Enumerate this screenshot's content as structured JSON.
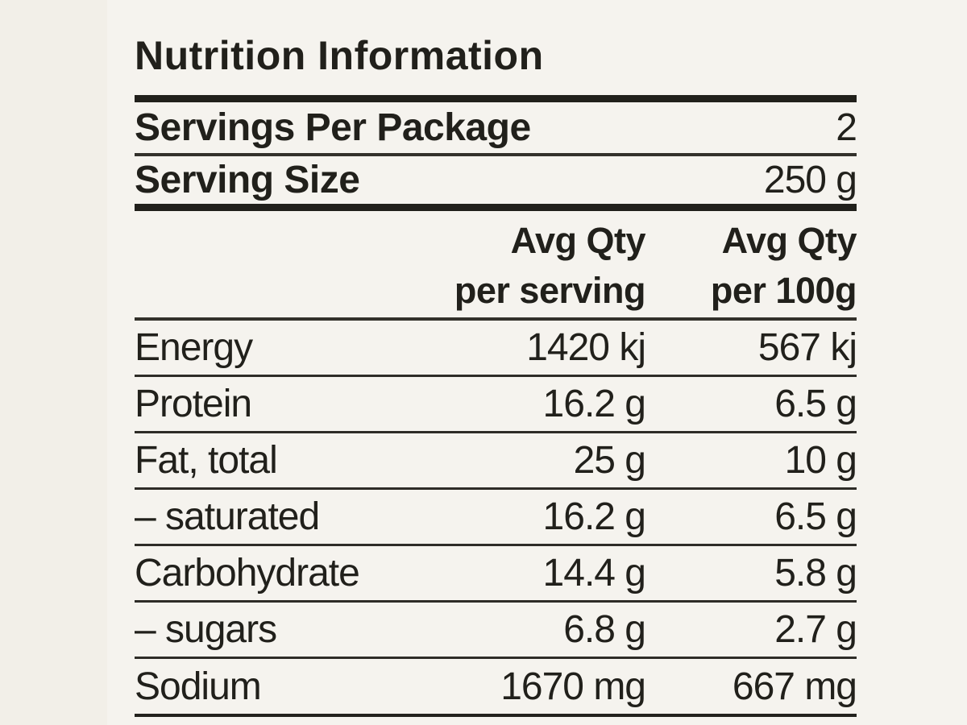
{
  "label": {
    "title": "Nutrition Information",
    "info_rows": [
      {
        "name": "Servings Per Package",
        "value": "2"
      },
      {
        "name": "Serving Size",
        "value": "250 g"
      }
    ],
    "columns": [
      {
        "line1": "Avg Qty",
        "line2": "per serving"
      },
      {
        "line1": "Avg Qty",
        "line2": "per 100g"
      }
    ],
    "rows": [
      {
        "nutrient": "Energy",
        "per_serving": "1420 kj",
        "per_100g": "567 kj"
      },
      {
        "nutrient": "Protein",
        "per_serving": "16.2 g",
        "per_100g": "6.5 g"
      },
      {
        "nutrient": "Fat, total",
        "per_serving": "25 g",
        "per_100g": "10 g"
      },
      {
        "nutrient": "– saturated",
        "per_serving": "16.2 g",
        "per_100g": "6.5 g"
      },
      {
        "nutrient": "Carbohydrate",
        "per_serving": "14.4 g",
        "per_100g": "5.8 g"
      },
      {
        "nutrient": "– sugars",
        "per_serving": "6.8 g",
        "per_100g": "2.7 g"
      },
      {
        "nutrient": "Sodium",
        "per_serving": "1670 mg",
        "per_100g": "667 mg"
      }
    ],
    "colors": {
      "background": "#f5f3ee",
      "background_left_strip": "#f2efe8",
      "ink": "#21201b"
    }
  }
}
